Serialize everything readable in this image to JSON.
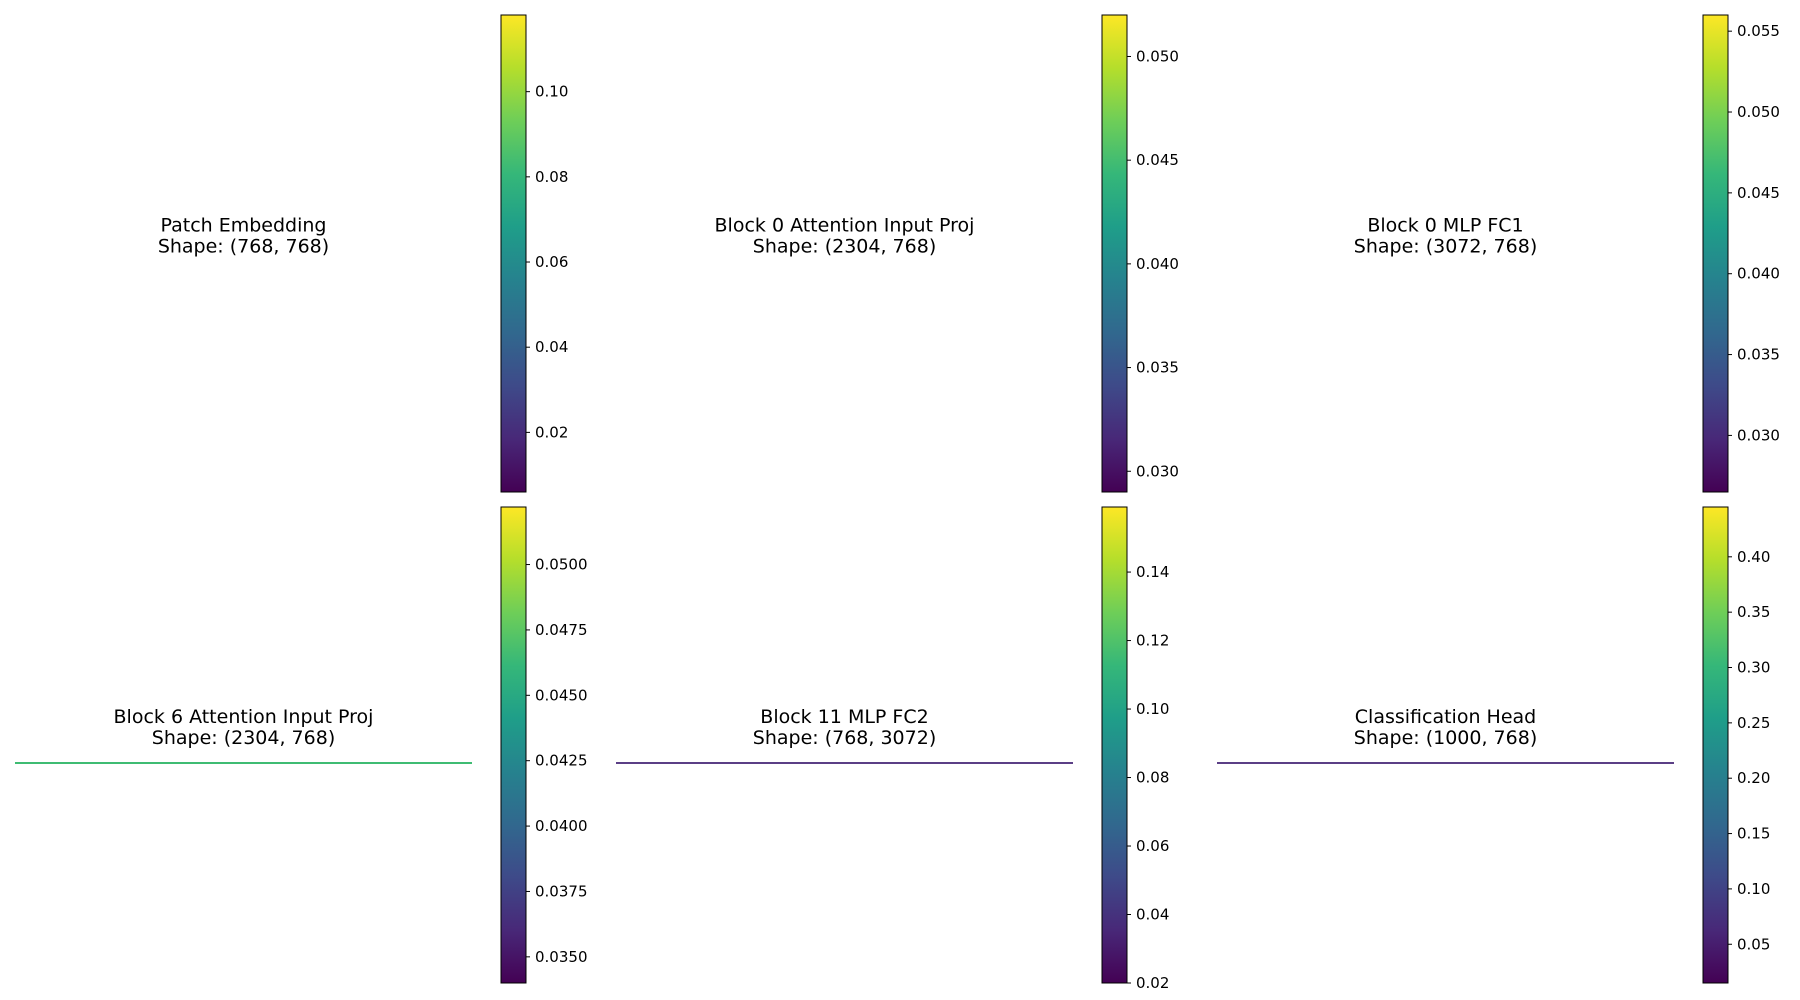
{
  "colormap": "viridis",
  "colormap_stops": [
    "#440154",
    "#482878",
    "#3e4a89",
    "#31688e",
    "#26828e",
    "#1f9e89",
    "#35b779",
    "#6ece58",
    "#b5de2b",
    "#fde725"
  ],
  "chart_data": [
    {
      "type": "heatmap",
      "title": [
        "Patch Embedding",
        "Shape: (768, 768)"
      ],
      "shape": [
        768,
        768
      ],
      "colorbar": {
        "min": 0.006,
        "max": 0.118,
        "ticks": [
          "0.02",
          "0.04",
          "0.06",
          "0.08",
          "0.10"
        ],
        "tick_values": [
          0.02,
          0.04,
          0.06,
          0.08,
          0.1
        ]
      },
      "strip_color": null
    },
    {
      "type": "heatmap",
      "title": [
        "Block 0 Attention Input Proj",
        "Shape: (2304, 768)"
      ],
      "shape": [
        2304,
        768
      ],
      "colorbar": {
        "min": 0.029,
        "max": 0.052,
        "ticks": [
          "0.030",
          "0.035",
          "0.040",
          "0.045",
          "0.050"
        ],
        "tick_values": [
          0.03,
          0.035,
          0.04,
          0.045,
          0.05
        ]
      },
      "strip_color": null
    },
    {
      "type": "heatmap",
      "title": [
        "Block 0 MLP FC1",
        "Shape: (3072, 768)"
      ],
      "shape": [
        3072,
        768
      ],
      "colorbar": {
        "min": 0.0265,
        "max": 0.056,
        "ticks": [
          "0.030",
          "0.035",
          "0.040",
          "0.045",
          "0.050",
          "0.055"
        ],
        "tick_values": [
          0.03,
          0.035,
          0.04,
          0.045,
          0.05,
          0.055
        ]
      },
      "strip_color": null
    },
    {
      "type": "heatmap",
      "title": [
        "Block 6 Attention Input Proj",
        "Shape: (2304, 768)"
      ],
      "shape": [
        2304,
        768
      ],
      "colorbar": {
        "min": 0.034,
        "max": 0.0522,
        "ticks": [
          "0.0350",
          "0.0375",
          "0.0400",
          "0.0425",
          "0.0450",
          "0.0475",
          "0.0500"
        ],
        "tick_values": [
          0.035,
          0.0375,
          0.04,
          0.0425,
          0.045,
          0.0475,
          0.05
        ]
      },
      "strip_color": "#3fbc73"
    },
    {
      "type": "heatmap",
      "title": [
        "Block 11 MLP FC2",
        "Shape: (768, 3072)"
      ],
      "shape": [
        768,
        3072
      ],
      "colorbar": {
        "min": 0.02,
        "max": 0.159,
        "ticks": [
          "0.02",
          "0.04",
          "0.06",
          "0.08",
          "0.10",
          "0.12",
          "0.14"
        ],
        "tick_values": [
          0.02,
          0.04,
          0.06,
          0.08,
          0.1,
          0.12,
          0.14
        ]
      },
      "strip_color": "#5b3f86"
    },
    {
      "type": "heatmap",
      "title": [
        "Classification Head",
        "Shape: (1000, 768)"
      ],
      "shape": [
        1000,
        768
      ],
      "colorbar": {
        "min": 0.015,
        "max": 0.445,
        "ticks": [
          "0.05",
          "0.10",
          "0.15",
          "0.20",
          "0.25",
          "0.30",
          "0.35",
          "0.40"
        ],
        "tick_values": [
          0.05,
          0.1,
          0.15,
          0.2,
          0.25,
          0.3,
          0.35,
          0.4
        ]
      },
      "strip_color": "#5b3f86"
    }
  ]
}
